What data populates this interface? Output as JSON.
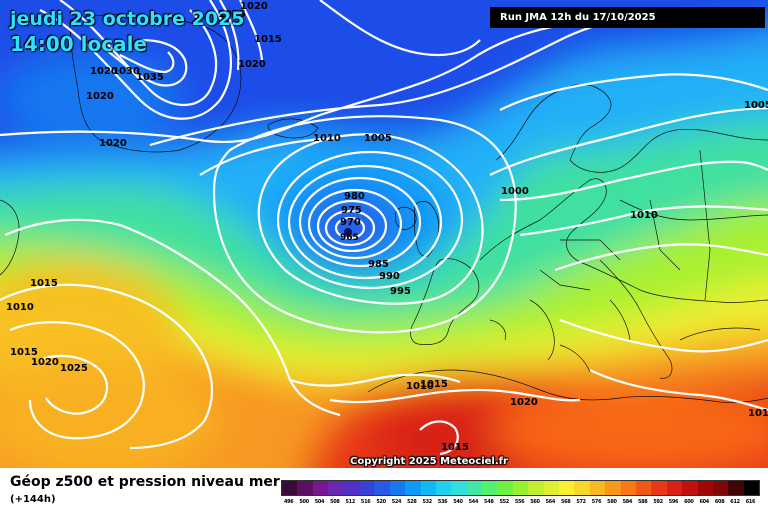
{
  "map": {
    "date_title": "jeudi 23 octobre 2025",
    "time_title": "14:00 locale",
    "run_label": "Run JMA 12h du 17/10/2025",
    "copyright": "Copyright 2025 Meteociel.fr",
    "low_center_label": "965",
    "isobar_labels": [
      "1020",
      "1015",
      "1015",
      "1020",
      "1020",
      "1030",
      "1035",
      "1020",
      "1020",
      "1010",
      "1005",
      "980",
      "975",
      "970",
      "985",
      "990",
      "995",
      "1000",
      "1010",
      "1005",
      "1015",
      "1010",
      "1015",
      "1020",
      "1025",
      "1010",
      "1015",
      "1020",
      "1015",
      "1015"
    ]
  },
  "footer": {
    "title": "Géop z500 et pression niveau mer",
    "subtitle": "(+144h)"
  },
  "legend": {
    "labels": [
      "496",
      "500",
      "504",
      "508",
      "512",
      "516",
      "520",
      "524",
      "528",
      "532",
      "536",
      "540",
      "544",
      "548",
      "552",
      "556",
      "560",
      "564",
      "568",
      "572",
      "576",
      "580",
      "584",
      "588",
      "592",
      "596",
      "600",
      "604",
      "608",
      "612",
      "616"
    ],
    "colors": [
      "#3a0a3a",
      "#5a1060",
      "#7a1890",
      "#6a28b0",
      "#5030c8",
      "#3840d8",
      "#2858e8",
      "#1878f0",
      "#1098f8",
      "#10b8f8",
      "#20d0f0",
      "#30e0d8",
      "#40e8a8",
      "#50f070",
      "#70f040",
      "#98f030",
      "#c0f030",
      "#e0f030",
      "#f8f030",
      "#f8d828",
      "#f8b820",
      "#f89818",
      "#f87818",
      "#f05818",
      "#e83818",
      "#d82018",
      "#c01010",
      "#a00808",
      "#800808",
      "#400404",
      "#000000"
    ]
  }
}
